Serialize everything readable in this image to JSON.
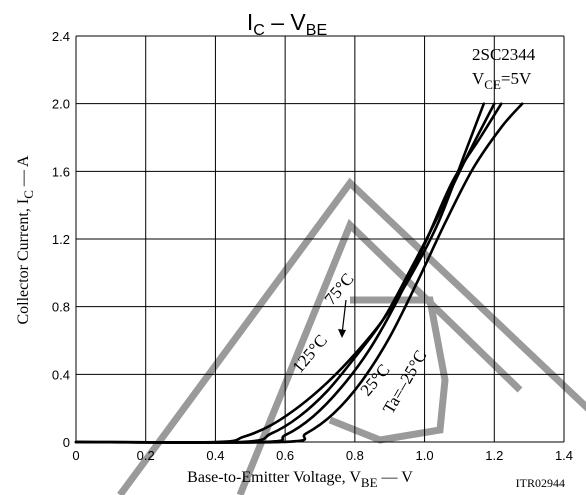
{
  "chart_data": {
    "type": "line",
    "title": "I_C – V_BE",
    "title_parts": {
      "main": "I",
      "sub": "C",
      "mid": " – V",
      "sub2": "BE"
    },
    "part_number": "2SC2344",
    "condition": {
      "prefix": "V",
      "sub": "CE",
      "suffix": "=5V"
    },
    "xlabel": {
      "prefix": "Base-to-Emitter Voltage, V",
      "sub": "BE",
      "suffix": "  —  V"
    },
    "ylabel": {
      "prefix": "Collector Current, I",
      "sub": "C",
      "suffix": "  —  A"
    },
    "figure_code": "ITR02944",
    "xlim": [
      0,
      1.4
    ],
    "ylim": [
      0,
      2.4
    ],
    "xticks": [
      "0",
      "0.2",
      "0.4",
      "0.6",
      "0.8",
      "1.0",
      "1.2",
      "1.4"
    ],
    "yticks": [
      "0",
      "0.4",
      "0.8",
      "1.2",
      "1.6",
      "2.0",
      "2.4"
    ],
    "grid": true,
    "series": [
      {
        "name": "125°C",
        "x": [
          0,
          0.4,
          0.48,
          0.56,
          0.64,
          0.72,
          0.8,
          0.88,
          0.96,
          1.04,
          1.12,
          1.17
        ],
        "y": [
          0,
          0,
          0.03,
          0.1,
          0.21,
          0.35,
          0.52,
          0.72,
          0.98,
          1.3,
          1.73,
          2.0
        ]
      },
      {
        "name": "75°C",
        "x": [
          0,
          0.47,
          0.56,
          0.64,
          0.72,
          0.8,
          0.88,
          0.96,
          1.04,
          1.12,
          1.2
        ],
        "y": [
          0,
          0,
          0.05,
          0.15,
          0.3,
          0.5,
          0.72,
          1.02,
          1.34,
          1.68,
          2.0
        ]
      },
      {
        "name": "25°C",
        "x": [
          0,
          0.53,
          0.6,
          0.68,
          0.76,
          0.84,
          0.92,
          1.0,
          1.08,
          1.16,
          1.22
        ],
        "y": [
          0,
          0,
          0.04,
          0.15,
          0.32,
          0.54,
          0.83,
          1.17,
          1.54,
          1.8,
          2.0
        ]
      },
      {
        "name": "Ta=–25°C",
        "x": [
          0,
          0.59,
          0.66,
          0.74,
          0.82,
          0.9,
          0.98,
          1.06,
          1.14,
          1.22,
          1.28
        ],
        "y": [
          0,
          0,
          0.05,
          0.17,
          0.36,
          0.62,
          0.95,
          1.3,
          1.62,
          1.86,
          2.0
        ]
      }
    ]
  }
}
